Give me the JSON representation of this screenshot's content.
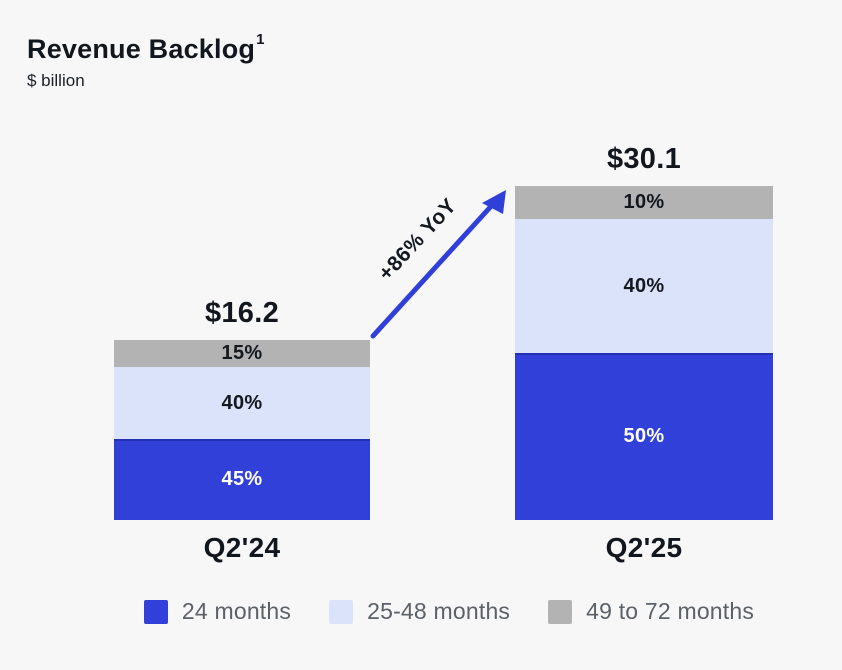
{
  "page": {
    "background": "#f7f7f8"
  },
  "header": {
    "title": "Revenue Backlog",
    "title_superscript": "1",
    "subtitle": "$ billion"
  },
  "chart_data": {
    "type": "bar",
    "stacked": true,
    "unit": "$ billion",
    "title": "Revenue Backlog",
    "categories": [
      "Q2'24",
      "Q2'25"
    ],
    "totals": [
      16.2,
      30.1
    ],
    "total_labels": [
      "$16.2",
      "$30.1"
    ],
    "series": [
      {
        "name": "24 months",
        "values_pct": [
          45,
          50
        ]
      },
      {
        "name": "25-48 months",
        "values_pct": [
          40,
          40
        ]
      },
      {
        "name": "49 to 72 months",
        "values_pct": [
          15,
          10
        ]
      }
    ],
    "bars": [
      {
        "category": "Q2'24",
        "total": 16.2,
        "total_label": "$16.2",
        "segments": [
          {
            "series": "49 to 72 months",
            "pct": 15,
            "label": "15%"
          },
          {
            "series": "25-48 months",
            "pct": 40,
            "label": "40%"
          },
          {
            "series": "24 months",
            "pct": 45,
            "label": "45%"
          }
        ]
      },
      {
        "category": "Q2'25",
        "total": 30.1,
        "total_label": "$30.1",
        "segments": [
          {
            "series": "49 to 72 months",
            "pct": 10,
            "label": "10%"
          },
          {
            "series": "25-48 months",
            "pct": 40,
            "label": "40%"
          },
          {
            "series": "24 months",
            "pct": 50,
            "label": "50%"
          }
        ]
      }
    ],
    "series_styles": {
      "24 months": {
        "fill": "#3140d9",
        "text": "#ffffff",
        "top_edge": "#2431b2"
      },
      "25-48 months": {
        "fill": "#dbe3fb",
        "text": "#14181f"
      },
      "49 to 72 months": {
        "fill": "#b3b3b4",
        "text": "#14181f"
      }
    },
    "annotation": {
      "text": "+86% YoY",
      "color": "#2f3fd8"
    },
    "legend_position": "bottom",
    "axes": "none",
    "gridlines": false
  },
  "legend": {
    "items": [
      {
        "label": "24 months",
        "color": "#3140d9"
      },
      {
        "label": "25-48 months",
        "color": "#dbe3fb"
      },
      {
        "label": "49 to 72 months",
        "color": "#b3b3b4"
      }
    ]
  }
}
